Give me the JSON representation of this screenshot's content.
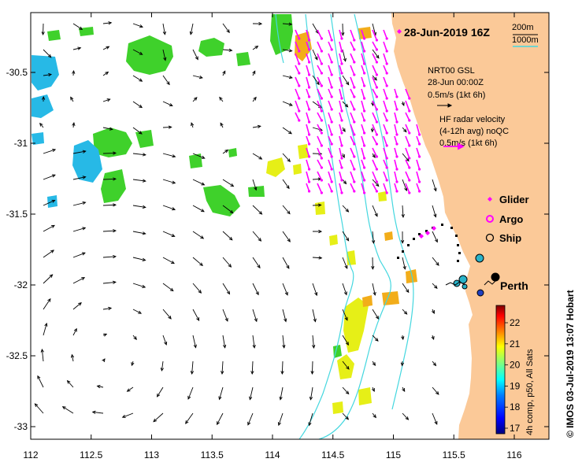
{
  "map": {
    "date_label": "28-Jun-2019 16Z",
    "city_label": "Perth",
    "credit": "© IMOS 03-Jul-2019 13:07 Hobart",
    "contours": {
      "c200": "200m",
      "c1000": "1000m"
    },
    "nrt": {
      "line1": "NRT00 GSL",
      "line2": "28-Jun 00:00Z",
      "line3": "0.5m/s (1kt 6h)"
    },
    "hf": {
      "line1": "HF radar velocity",
      "line2": "(4-12h avg) noQC",
      "line3": "0.5m/s (1kt 6h)"
    },
    "legend": [
      {
        "label": "Glider",
        "symbol": "diamond",
        "color": "#ff00ff"
      },
      {
        "label": "Argo",
        "symbol": "circle-ring",
        "color": "#ff00ff"
      },
      {
        "label": "Ship",
        "symbol": "circle",
        "color": "#000000"
      }
    ],
    "x_ticks": [
      "112",
      "112.5",
      "113",
      "113.5",
      "114",
      "114.5",
      "115",
      "115.5",
      "116"
    ],
    "y_ticks": [
      "-30.5",
      "-31",
      "-31.5",
      "-32",
      "-32.5",
      "-33"
    ],
    "colorbar": {
      "ticks": [
        "22",
        "21",
        "20",
        "19",
        "18",
        "17"
      ],
      "label": "4h comp, p50, All Sats",
      "colors": [
        "#00007f",
        "#0000ff",
        "#007fff",
        "#00ffff",
        "#7fff7f",
        "#ffff00",
        "#ff7f00",
        "#ff0000",
        "#7f0000"
      ]
    },
    "colors": {
      "land": "#fbc998",
      "sst_green": "#3fd12b",
      "sst_cyan": "#27b9e6",
      "sst_yellow": "#e6ef17",
      "sst_orange": "#f2ad1a",
      "contour": "#44d7df",
      "hf_vector": "#ff00ff"
    }
  }
}
